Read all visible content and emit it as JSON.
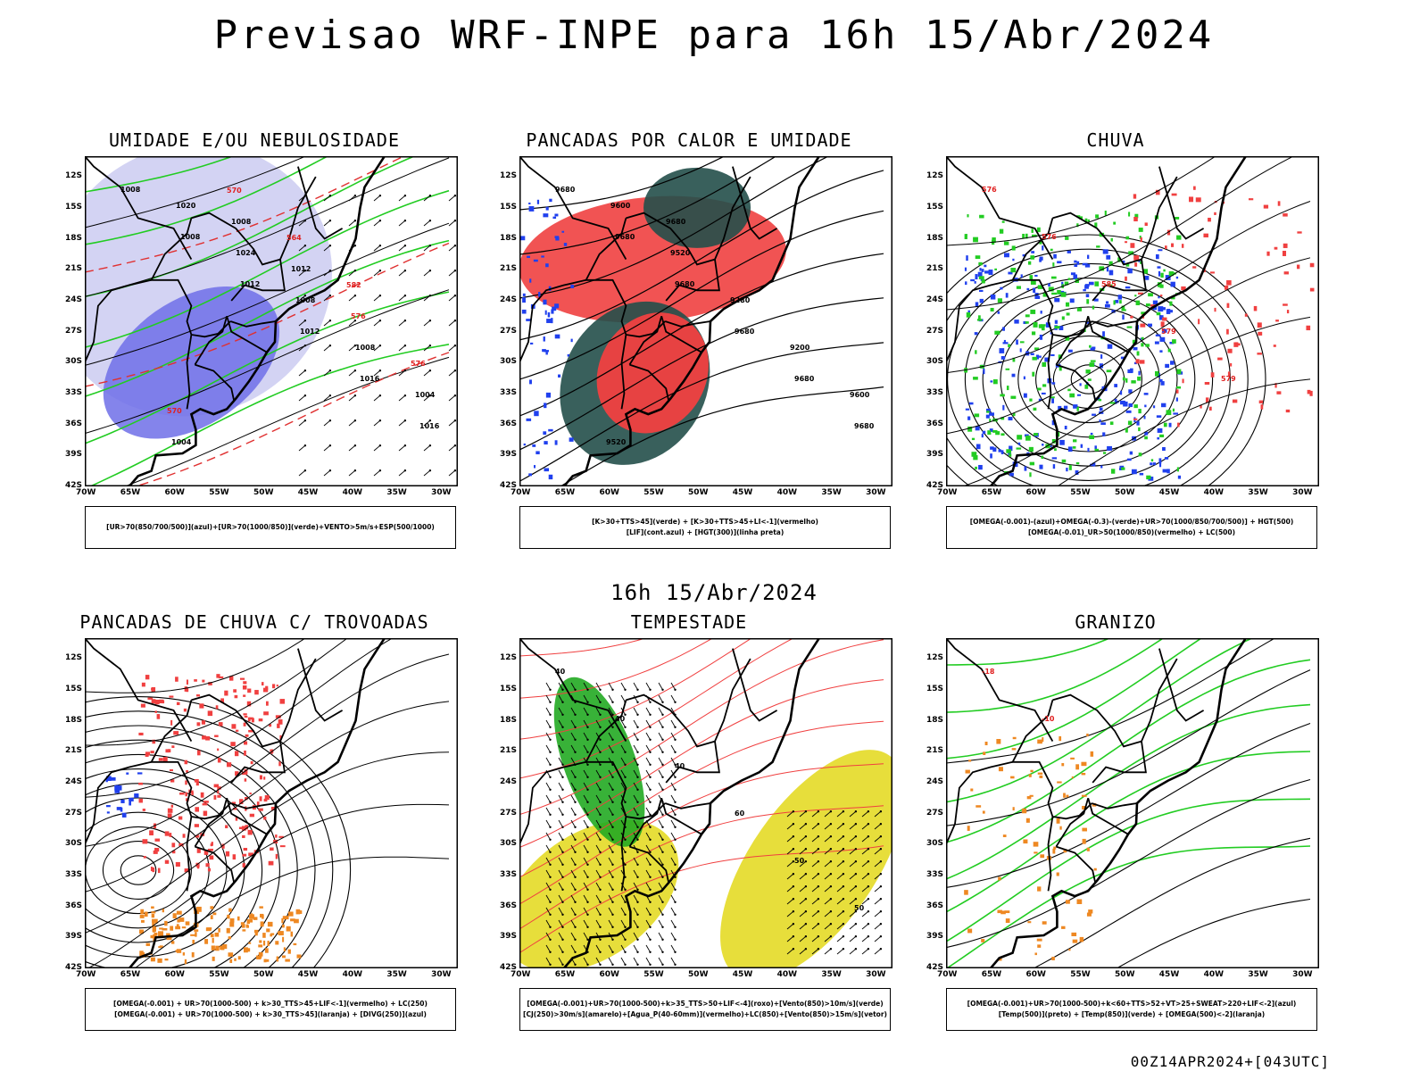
{
  "title": "Previsao WRF-INPE  para 16h 15/Abr/2024",
  "mid_label": "16h 15/Abr/2024",
  "footer": "00Z14APR2024+[043UTC]",
  "lat_labels": [
    "12S",
    "15S",
    "18S",
    "21S",
    "24S",
    "27S",
    "30S",
    "33S",
    "36S",
    "39S",
    "42S"
  ],
  "lon_labels": [
    "70W",
    "65W",
    "60W",
    "55W",
    "50W",
    "45W",
    "40W",
    "35W",
    "30W"
  ],
  "colors": {
    "humidity_blue": "#6f6fe8",
    "humidity_light": "#c8c8f0",
    "green": "#22cc22",
    "red": "#f04040",
    "dark_teal": "#234f4a",
    "blue": "#2040ee",
    "orange": "#ee8822",
    "yellow": "#e6dc30"
  },
  "panels": [
    {
      "id": "umidade",
      "title": "UMIDADE E/OU NEBULOSIDADE",
      "legend": [
        "[UR>70(850/700/500)](azul)+[UR>70(1000/850)](verde)+VENTO>5m/s+ESP(500/1000)"
      ],
      "contour_labels": [
        "1008",
        "1008",
        "1012",
        "1012",
        "1016",
        "1016",
        "1020",
        "1024",
        "1008",
        "1008",
        "1004",
        "1004",
        "1008",
        "1012",
        "576",
        "576",
        "570",
        "570",
        "564",
        "582"
      ]
    },
    {
      "id": "pancadas_calor",
      "title": "PANCADAS POR CALOR E UMIDADE",
      "legend": [
        "[K>30+TTS>45](verde)  +  [K>30+TTS>45+LI<-1](vermelho)",
        "[LIF](cont.azul)  +  [HGT(300)](linha preta)"
      ],
      "contour_labels": [
        "9680",
        "9680",
        "9680",
        "9680",
        "9680",
        "9680",
        "9600",
        "9520",
        "9280",
        "9200",
        "9600",
        "9520",
        "9680"
      ]
    },
    {
      "id": "chuva",
      "title": "CHUVA",
      "legend": [
        "[OMEGA(-0.001)-(azul)+OMEGA(-0.3)-(verde)+UR>70(1000/850/700/500)]  +  HGT(500)",
        "[OMEGA(-0.01)_UR>50(1000/850)(vermelho)  +  LC(500)"
      ],
      "contour_labels": [
        "576",
        "576",
        "585",
        "579",
        "579"
      ]
    },
    {
      "id": "trovoadas",
      "title": "PANCADAS DE CHUVA C/ TROVOADAS",
      "legend": [
        "[OMEGA(-0.001) + UR>70(1000-500) + k>30_TTS>45+LIF<-1](vermelho) + LC(250)",
        "[OMEGA(-0.001) + UR>70(1000-500) + k>30_TTS>45](laranja) + [DIVG(250)](azul)"
      ],
      "contour_labels": []
    },
    {
      "id": "tempestade",
      "title": "TEMPESTADE",
      "legend": [
        "[OMEGA(-0.001)+UR>70(1000-500)+k>35_TTS>50+LIF<-4](roxo)+[Vento(850)>10m/s](verde)",
        "[CJ(250)>30m/s](amarelo)+[Agua_P(40-60mm)](vermelho)+LC(850)+[Vento(850)>15m/s](vetor)"
      ],
      "contour_labels": [
        "40",
        "40",
        "40",
        "60",
        "50",
        "50"
      ]
    },
    {
      "id": "granizo",
      "title": "GRANIZO",
      "legend": [
        "[OMEGA(-0.001)+UR>70(1000-500)+k<60+TTS>52+VT>25+SWEAT>220+LIF<-2](azul)",
        "[Temp(500)](preto)  +  [Temp(850)](verde)  +  [OMEGA(500)<-2](laranja)"
      ],
      "contour_labels": [
        "-18",
        "-10"
      ]
    }
  ]
}
